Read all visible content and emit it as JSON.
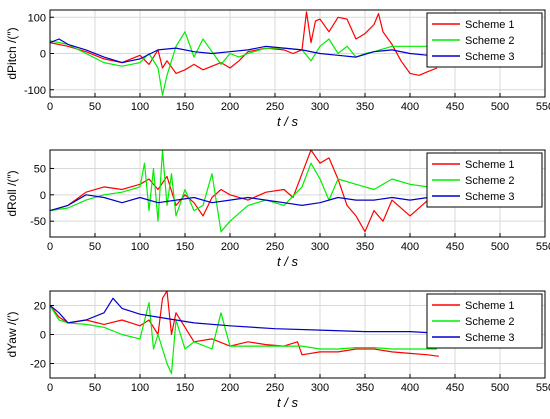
{
  "chart_data": [
    {
      "type": "line",
      "ylabel": "dPitch /(″)",
      "xlabel": "t  / s",
      "xlim": [
        0,
        550
      ],
      "ylim": [
        -120,
        120
      ],
      "xticks": [
        0,
        50,
        100,
        150,
        200,
        250,
        300,
        350,
        400,
        450,
        500,
        550
      ],
      "yticks": [
        -100,
        0,
        100
      ],
      "grid": true,
      "legend_position": "top-right",
      "series": [
        {
          "name": "Scheme 1",
          "color": "#ff0000",
          "x": [
            0,
            20,
            40,
            60,
            80,
            100,
            110,
            120,
            125,
            130,
            140,
            150,
            160,
            170,
            180,
            190,
            200,
            210,
            220,
            240,
            260,
            270,
            280,
            285,
            290,
            295,
            300,
            310,
            320,
            330,
            340,
            350,
            360,
            365,
            370,
            380,
            390,
            400,
            410,
            420,
            430
          ],
          "y": [
            30,
            20,
            5,
            -15,
            -25,
            -5,
            -30,
            10,
            -40,
            -20,
            -55,
            -45,
            -30,
            -45,
            -35,
            -25,
            -40,
            -20,
            5,
            15,
            10,
            0,
            10,
            115,
            30,
            90,
            95,
            60,
            100,
            95,
            40,
            55,
            80,
            110,
            60,
            25,
            -20,
            -55,
            -60,
            -50,
            -40
          ]
        },
        {
          "name": "Scheme 2",
          "color": "#00ee00",
          "x": [
            0,
            20,
            40,
            60,
            80,
            100,
            110,
            120,
            125,
            130,
            140,
            150,
            160,
            170,
            180,
            190,
            200,
            210,
            220,
            240,
            260,
            280,
            290,
            300,
            310,
            320,
            330,
            340,
            350,
            360,
            380,
            400,
            420,
            430
          ],
          "y": [
            35,
            25,
            0,
            -25,
            -35,
            -25,
            0,
            -40,
            -115,
            -60,
            20,
            60,
            -10,
            40,
            5,
            -30,
            0,
            -10,
            0,
            15,
            15,
            10,
            -20,
            20,
            40,
            0,
            20,
            -10,
            0,
            5,
            20,
            20,
            20,
            20
          ]
        },
        {
          "name": "Scheme 3",
          "color": "#0000cc",
          "x": [
            0,
            10,
            20,
            40,
            60,
            80,
            100,
            120,
            140,
            160,
            180,
            200,
            220,
            240,
            260,
            280,
            300,
            320,
            340,
            360,
            380,
            400,
            420,
            430
          ],
          "y": [
            30,
            40,
            25,
            10,
            -10,
            -25,
            -15,
            10,
            15,
            5,
            0,
            5,
            10,
            20,
            15,
            10,
            0,
            -5,
            -10,
            5,
            10,
            0,
            -5,
            -5
          ]
        }
      ]
    },
    {
      "type": "line",
      "ylabel": "dRoll /(″)",
      "xlabel": "t  / s",
      "xlim": [
        0,
        550
      ],
      "ylim": [
        -80,
        85
      ],
      "xticks": [
        0,
        50,
        100,
        150,
        200,
        250,
        300,
        350,
        400,
        450,
        500,
        550
      ],
      "yticks": [
        -50,
        0,
        50
      ],
      "grid": true,
      "legend_position": "top-right",
      "series": [
        {
          "name": "Scheme 1",
          "color": "#ff0000",
          "x": [
            0,
            20,
            40,
            60,
            80,
            100,
            110,
            120,
            130,
            140,
            150,
            160,
            170,
            180,
            190,
            200,
            220,
            240,
            260,
            270,
            280,
            290,
            300,
            310,
            320,
            330,
            340,
            350,
            360,
            370,
            380,
            400,
            420,
            430
          ],
          "y": [
            -30,
            -20,
            5,
            15,
            10,
            20,
            30,
            10,
            35,
            -20,
            0,
            -15,
            -40,
            -5,
            10,
            0,
            -10,
            5,
            10,
            -5,
            40,
            85,
            60,
            70,
            30,
            -20,
            -40,
            -70,
            -30,
            -50,
            -10,
            -40,
            -10,
            0
          ]
        },
        {
          "name": "Scheme 2",
          "color": "#00ee00",
          "x": [
            0,
            20,
            40,
            60,
            80,
            100,
            105,
            110,
            115,
            120,
            125,
            130,
            135,
            140,
            150,
            160,
            170,
            180,
            190,
            200,
            220,
            240,
            260,
            280,
            290,
            300,
            310,
            320,
            340,
            360,
            380,
            400,
            420,
            430
          ],
          "y": [
            -30,
            -25,
            -10,
            0,
            5,
            15,
            60,
            -30,
            50,
            -50,
            85,
            -20,
            40,
            -40,
            10,
            -30,
            -20,
            40,
            -70,
            -50,
            -20,
            -10,
            -20,
            15,
            60,
            30,
            -10,
            30,
            20,
            10,
            30,
            20,
            15,
            20
          ]
        },
        {
          "name": "Scheme 3",
          "color": "#0000cc",
          "x": [
            0,
            20,
            40,
            60,
            80,
            100,
            120,
            140,
            160,
            180,
            200,
            220,
            240,
            260,
            280,
            300,
            320,
            340,
            360,
            380,
            400,
            420,
            430
          ],
          "y": [
            -30,
            -20,
            0,
            -5,
            -15,
            -5,
            -15,
            -10,
            -5,
            -15,
            -10,
            -5,
            -10,
            -15,
            -20,
            -15,
            -5,
            -10,
            -10,
            -5,
            -10,
            -5,
            -5
          ]
        }
      ]
    },
    {
      "type": "line",
      "ylabel": "dYaw /(′)",
      "xlabel": "t  / s",
      "xlim": [
        0,
        550
      ],
      "ylim": [
        -30,
        30
      ],
      "xticks": [
        0,
        50,
        100,
        150,
        200,
        250,
        300,
        350,
        400,
        450,
        500,
        550
      ],
      "yticks": [
        -20,
        0,
        20
      ],
      "grid": true,
      "legend_position": "top-right",
      "series": [
        {
          "name": "Scheme 1",
          "color": "#ff0000",
          "x": [
            0,
            10,
            20,
            40,
            60,
            80,
            100,
            110,
            120,
            125,
            130,
            135,
            140,
            150,
            160,
            180,
            200,
            220,
            240,
            260,
            275,
            280,
            300,
            320,
            340,
            360,
            380,
            400,
            420,
            432
          ],
          "y": [
            20,
            12,
            8,
            10,
            7,
            10,
            6,
            10,
            0,
            25,
            30,
            0,
            15,
            5,
            -5,
            -3,
            -8,
            -5,
            -7,
            -8,
            -5,
            -14,
            -12,
            -12,
            -10,
            -10,
            -12,
            -13,
            -14,
            -15
          ]
        },
        {
          "name": "Scheme 2",
          "color": "#00ee00",
          "x": [
            0,
            10,
            20,
            40,
            60,
            80,
            100,
            110,
            115,
            120,
            130,
            135,
            140,
            150,
            160,
            180,
            190,
            200,
            220,
            240,
            260,
            280,
            300,
            320,
            340,
            360,
            380,
            400,
            420,
            430
          ],
          "y": [
            20,
            10,
            8,
            7,
            5,
            0,
            -3,
            22,
            -10,
            0,
            -20,
            -27,
            10,
            -10,
            -5,
            -10,
            15,
            -8,
            -8,
            -8,
            -8,
            -8,
            -10,
            -10,
            -9,
            -9,
            -10,
            -10,
            -10,
            -10
          ]
        },
        {
          "name": "Scheme 3",
          "color": "#0000cc",
          "x": [
            0,
            10,
            20,
            40,
            60,
            70,
            80,
            100,
            120,
            140,
            160,
            200,
            250,
            300,
            350,
            400,
            430
          ],
          "y": [
            20,
            15,
            8,
            10,
            15,
            25,
            18,
            14,
            12,
            10,
            8,
            6,
            4,
            3,
            2,
            2,
            1
          ]
        }
      ]
    }
  ]
}
